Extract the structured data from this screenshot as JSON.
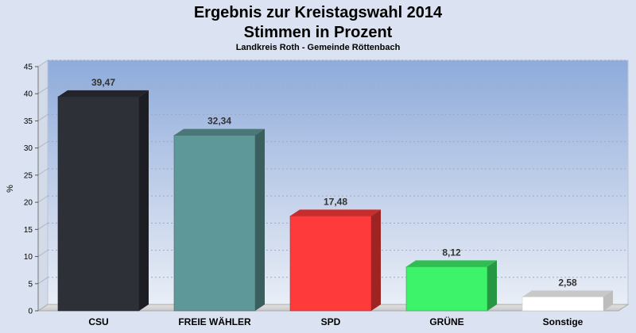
{
  "chart_data": {
    "type": "bar",
    "title": "Ergebnis zur Kreistagswahl 2014",
    "subtitle_line": "Stimmen in Prozent",
    "caption": "Landkreis Roth - Gemeinde Röttenbach",
    "ylabel": "%",
    "ylim": [
      0,
      45
    ],
    "yticks": [
      0,
      5,
      10,
      15,
      20,
      25,
      30,
      35,
      40,
      45
    ],
    "grid": true,
    "categories": [
      "CSU",
      "FREIE WÄHLER",
      "SPD",
      "GRÜNE",
      "Sonstige"
    ],
    "values": [
      39.47,
      32.34,
      17.48,
      8.12,
      2.58
    ],
    "value_labels": [
      "39,47",
      "32,34",
      "17,48",
      "8,12",
      "2,58"
    ],
    "colors": [
      "#2e3038",
      "#5f9898",
      "#ff3a3a",
      "#3df36a",
      "#ffffff"
    ]
  }
}
